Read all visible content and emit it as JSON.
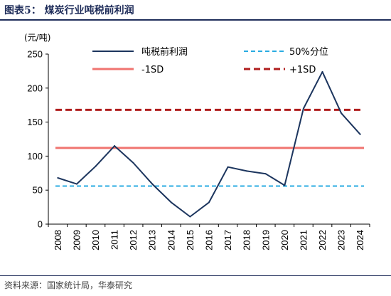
{
  "header": {
    "title": "图表5：  煤炭行业吨税前利润"
  },
  "footer": {
    "source": "资料来源：国家统计局，华泰研究"
  },
  "chart_data": {
    "type": "line",
    "unit_label": "(元/吨)",
    "categories": [
      "2008",
      "2009",
      "2010",
      "2011",
      "2012",
      "2013",
      "2014",
      "2015",
      "2016",
      "2017",
      "2018",
      "2019",
      "2020",
      "2021",
      "2022",
      "2023",
      "2024"
    ],
    "ylim": [
      0,
      250
    ],
    "yticks": [
      0,
      50,
      100,
      150,
      200,
      250
    ],
    "grid": false,
    "legend_position": "top",
    "series": [
      {
        "name": "吨税前利润",
        "type": "line",
        "color": "#1c355e",
        "values": [
          68,
          59,
          85,
          115,
          90,
          59,
          32,
          11,
          32,
          84,
          78,
          74,
          57,
          170,
          224,
          163,
          132
        ]
      },
      {
        "name": "50%分位",
        "type": "hline",
        "color": "#29abe2",
        "value": 56
      },
      {
        "name": "-1SD",
        "type": "hline",
        "color": "#f07470",
        "value": 112
      },
      {
        "name": "+1SD",
        "type": "hline",
        "color": "#b01e1e",
        "value": 168
      }
    ]
  }
}
